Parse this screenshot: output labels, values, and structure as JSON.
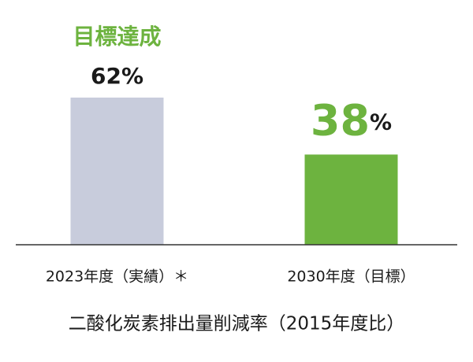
{
  "chart_data": {
    "type": "bar",
    "annotation": "目標達成",
    "categories": [
      "2023年度（実績）＊",
      "2030年度（目標）"
    ],
    "values": [
      62,
      38
    ],
    "value_labels": [
      "62%",
      "38%"
    ],
    "colors": [
      "#c8ccdc",
      "#6db33f"
    ],
    "label_colors": [
      "#1a1a1a",
      "#6db33f"
    ],
    "annotation_color": "#6db33f",
    "x_label": "二酸化炭素排出量削減率（2015年度比）"
  }
}
